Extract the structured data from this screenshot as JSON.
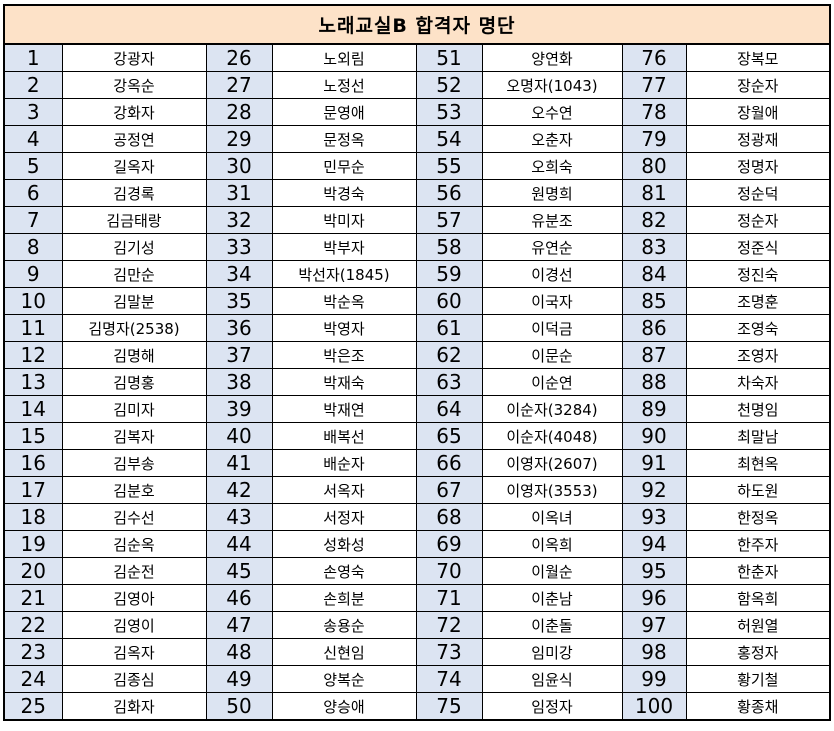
{
  "title": "노래교실B 합격자 명단",
  "rows": [
    [
      {
        "num": "1",
        "name": "강광자"
      },
      {
        "num": "26",
        "name": "노외림"
      },
      {
        "num": "51",
        "name": "양연화"
      },
      {
        "num": "76",
        "name": "장복모"
      }
    ],
    [
      {
        "num": "2",
        "name": "강옥순"
      },
      {
        "num": "27",
        "name": "노정선"
      },
      {
        "num": "52",
        "name": "오명자(1043)"
      },
      {
        "num": "77",
        "name": "장순자"
      }
    ],
    [
      {
        "num": "3",
        "name": "강화자"
      },
      {
        "num": "28",
        "name": "문영애"
      },
      {
        "num": "53",
        "name": "오수연"
      },
      {
        "num": "78",
        "name": "장월애"
      }
    ],
    [
      {
        "num": "4",
        "name": "공정연"
      },
      {
        "num": "29",
        "name": "문정옥"
      },
      {
        "num": "54",
        "name": "오춘자"
      },
      {
        "num": "79",
        "name": "정광재"
      }
    ],
    [
      {
        "num": "5",
        "name": "길옥자"
      },
      {
        "num": "30",
        "name": "민무순"
      },
      {
        "num": "55",
        "name": "오희숙"
      },
      {
        "num": "80",
        "name": "정명자"
      }
    ],
    [
      {
        "num": "6",
        "name": "김경록"
      },
      {
        "num": "31",
        "name": "박경숙"
      },
      {
        "num": "56",
        "name": "원명희"
      },
      {
        "num": "81",
        "name": "정순덕"
      }
    ],
    [
      {
        "num": "7",
        "name": "김금태랑"
      },
      {
        "num": "32",
        "name": "박미자"
      },
      {
        "num": "57",
        "name": "유분조"
      },
      {
        "num": "82",
        "name": "정순자"
      }
    ],
    [
      {
        "num": "8",
        "name": "김기성"
      },
      {
        "num": "33",
        "name": "박부자"
      },
      {
        "num": "58",
        "name": "유연순"
      },
      {
        "num": "83",
        "name": "정준식"
      }
    ],
    [
      {
        "num": "9",
        "name": "김만순"
      },
      {
        "num": "34",
        "name": "박선자(1845)"
      },
      {
        "num": "59",
        "name": "이경선"
      },
      {
        "num": "84",
        "name": "정진숙"
      }
    ],
    [
      {
        "num": "10",
        "name": "김말분"
      },
      {
        "num": "35",
        "name": "박순옥"
      },
      {
        "num": "60",
        "name": "이국자"
      },
      {
        "num": "85",
        "name": "조명훈"
      }
    ],
    [
      {
        "num": "11",
        "name": "김명자(2538)"
      },
      {
        "num": "36",
        "name": "박영자"
      },
      {
        "num": "61",
        "name": "이덕금"
      },
      {
        "num": "86",
        "name": "조영숙"
      }
    ],
    [
      {
        "num": "12",
        "name": "김명해"
      },
      {
        "num": "37",
        "name": "박은조"
      },
      {
        "num": "62",
        "name": "이문순"
      },
      {
        "num": "87",
        "name": "조영자"
      }
    ],
    [
      {
        "num": "13",
        "name": "김명홍"
      },
      {
        "num": "38",
        "name": "박재숙"
      },
      {
        "num": "63",
        "name": "이순연"
      },
      {
        "num": "88",
        "name": "차숙자"
      }
    ],
    [
      {
        "num": "14",
        "name": "김미자"
      },
      {
        "num": "39",
        "name": "박재연"
      },
      {
        "num": "64",
        "name": "이순자(3284)"
      },
      {
        "num": "89",
        "name": "천명임"
      }
    ],
    [
      {
        "num": "15",
        "name": "김복자"
      },
      {
        "num": "40",
        "name": "배복선"
      },
      {
        "num": "65",
        "name": "이순자(4048)"
      },
      {
        "num": "90",
        "name": "최말남"
      }
    ],
    [
      {
        "num": "16",
        "name": "김부송"
      },
      {
        "num": "41",
        "name": "배순자"
      },
      {
        "num": "66",
        "name": "이영자(2607)"
      },
      {
        "num": "91",
        "name": "최현옥"
      }
    ],
    [
      {
        "num": "17",
        "name": "김분호"
      },
      {
        "num": "42",
        "name": "서옥자"
      },
      {
        "num": "67",
        "name": "이영자(3553)"
      },
      {
        "num": "92",
        "name": "하도원"
      }
    ],
    [
      {
        "num": "18",
        "name": "김수선"
      },
      {
        "num": "43",
        "name": "서정자"
      },
      {
        "num": "68",
        "name": "이옥녀"
      },
      {
        "num": "93",
        "name": "한정옥"
      }
    ],
    [
      {
        "num": "19",
        "name": "김순옥"
      },
      {
        "num": "44",
        "name": "성화성"
      },
      {
        "num": "69",
        "name": "이옥희"
      },
      {
        "num": "94",
        "name": "한주자"
      }
    ],
    [
      {
        "num": "20",
        "name": "김순전"
      },
      {
        "num": "45",
        "name": "손영숙"
      },
      {
        "num": "70",
        "name": "이월순"
      },
      {
        "num": "95",
        "name": "한춘자"
      }
    ],
    [
      {
        "num": "21",
        "name": "김영아"
      },
      {
        "num": "46",
        "name": "손희분"
      },
      {
        "num": "71",
        "name": "이춘남"
      },
      {
        "num": "96",
        "name": "함옥희"
      }
    ],
    [
      {
        "num": "22",
        "name": "김영이"
      },
      {
        "num": "47",
        "name": "송용순"
      },
      {
        "num": "72",
        "name": "이춘돌"
      },
      {
        "num": "97",
        "name": "허원열"
      }
    ],
    [
      {
        "num": "23",
        "name": "김옥자"
      },
      {
        "num": "48",
        "name": "신현임"
      },
      {
        "num": "73",
        "name": "임미강"
      },
      {
        "num": "98",
        "name": "홍정자"
      }
    ],
    [
      {
        "num": "24",
        "name": "김종심"
      },
      {
        "num": "49",
        "name": "양복순"
      },
      {
        "num": "74",
        "name": "임윤식"
      },
      {
        "num": "99",
        "name": "황기철"
      }
    ],
    [
      {
        "num": "25",
        "name": "김화자"
      },
      {
        "num": "50",
        "name": "양승애"
      },
      {
        "num": "75",
        "name": "임정자"
      },
      {
        "num": "100",
        "name": "황종채"
      }
    ]
  ]
}
